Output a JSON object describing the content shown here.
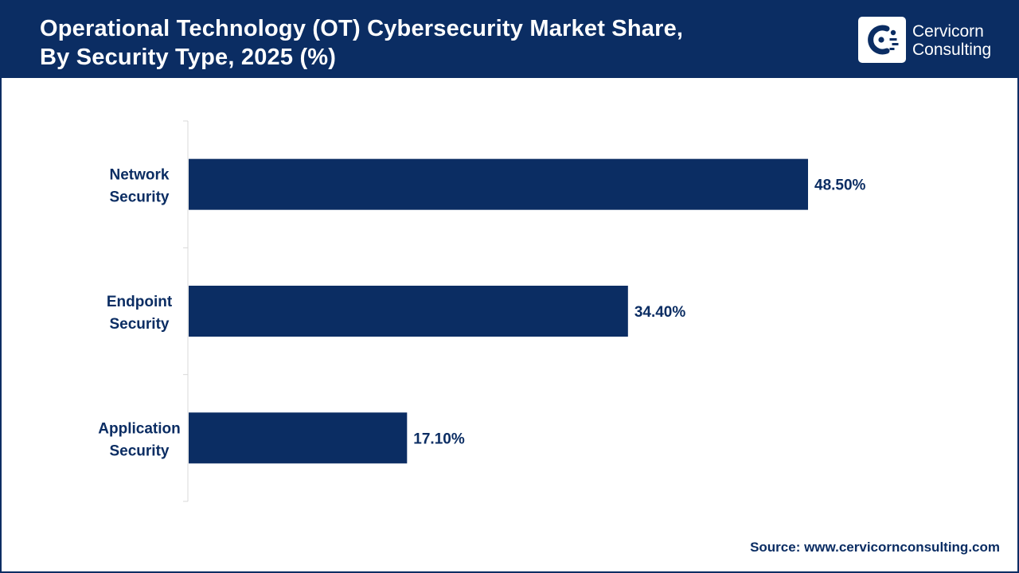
{
  "header": {
    "title_line1": "Operational Technology (OT) Cybersecurity Market Share,",
    "title_line2": "By Security Type, 2025 (%)"
  },
  "logo": {
    "name_line1": "Cervicorn",
    "name_line2": "Consulting",
    "icon": "cervicorn-c-logo"
  },
  "chart_data": {
    "type": "bar",
    "orientation": "horizontal",
    "categories": [
      [
        "Network",
        "Security"
      ],
      [
        "Endpoint",
        "Security"
      ],
      [
        "Application",
        "Security"
      ]
    ],
    "values": [
      48.5,
      34.4,
      17.1
    ],
    "data_labels": [
      "48.50%",
      "34.40%",
      "17.10%"
    ],
    "xlim": [
      0,
      60
    ],
    "grid": false,
    "legend": "none",
    "colors": {
      "bar": "#0b2d63",
      "axis": "#d9d9d9",
      "text": "#0b2d63"
    }
  },
  "footer": {
    "source": "Source: www.cervicornconsulting.com"
  }
}
